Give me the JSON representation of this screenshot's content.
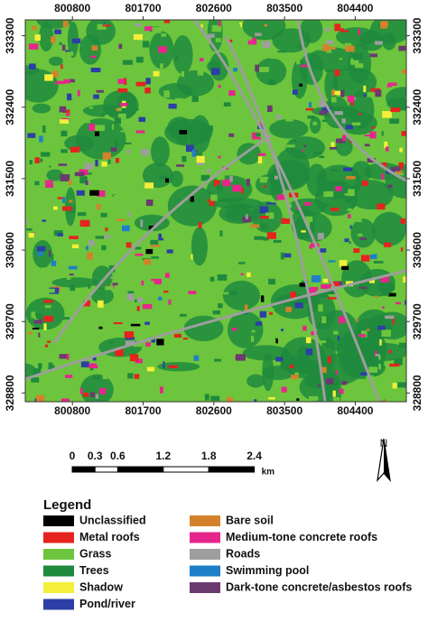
{
  "map": {
    "x_ticks": [
      800800,
      801700,
      802600,
      803500,
      804400
    ],
    "y_ticks": [
      333300,
      332400,
      331500,
      330600,
      329700,
      328800
    ],
    "xlim": [
      800200,
      805050
    ],
    "ylim": [
      328690,
      333500
    ],
    "scale_bar": {
      "ticks": [
        0,
        0.3,
        0.6,
        1.2,
        1.8,
        2.4
      ],
      "unit": "km"
    },
    "north": "N",
    "legend": {
      "title": "Legend",
      "items": [
        {
          "name": "Unclassified",
          "color": "#000000"
        },
        {
          "name": "Metal roofs",
          "color": "#e5231f"
        },
        {
          "name": "Grass",
          "color": "#6cc53c"
        },
        {
          "name": "Trees",
          "color": "#1f8a3d"
        },
        {
          "name": "Shadow",
          "color": "#f3ef3a"
        },
        {
          "name": "Pond/river",
          "color": "#2c3fa6"
        },
        {
          "name": "Bare soil",
          "color": "#d3822b"
        },
        {
          "name": "Medium-tone concrete roofs",
          "color": "#e6268c"
        },
        {
          "name": "Roads",
          "color": "#9e9e9e"
        },
        {
          "name": "Swimming pool",
          "color": "#1e7fc8"
        },
        {
          "name": "Dark-tone concrete/asbestos roofs",
          "color": "#6b3a6f"
        }
      ]
    }
  }
}
